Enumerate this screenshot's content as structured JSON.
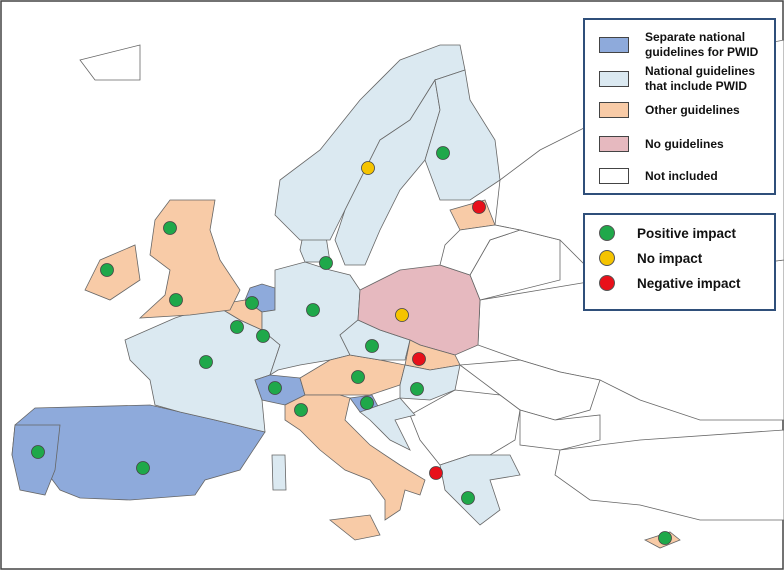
{
  "legend_guidelines": [
    {
      "label": "Separate national guidelines for PWID",
      "color": "#8eaadb"
    },
    {
      "label": "National  guidelines that include PWID",
      "color": "#dbe9f1"
    },
    {
      "label": "Other guidelines",
      "color": "#f8cba7"
    },
    {
      "label": "No guidelines",
      "color": "#e6b9bf"
    },
    {
      "label": "Not included",
      "color": "#ffffff"
    }
  ],
  "legend_impact": [
    {
      "label": "Positive impact",
      "color": "#1fa84a"
    },
    {
      "label": "No impact",
      "color": "#f5c400"
    },
    {
      "label": "Negative impact",
      "color": "#e8101a"
    }
  ]
}
